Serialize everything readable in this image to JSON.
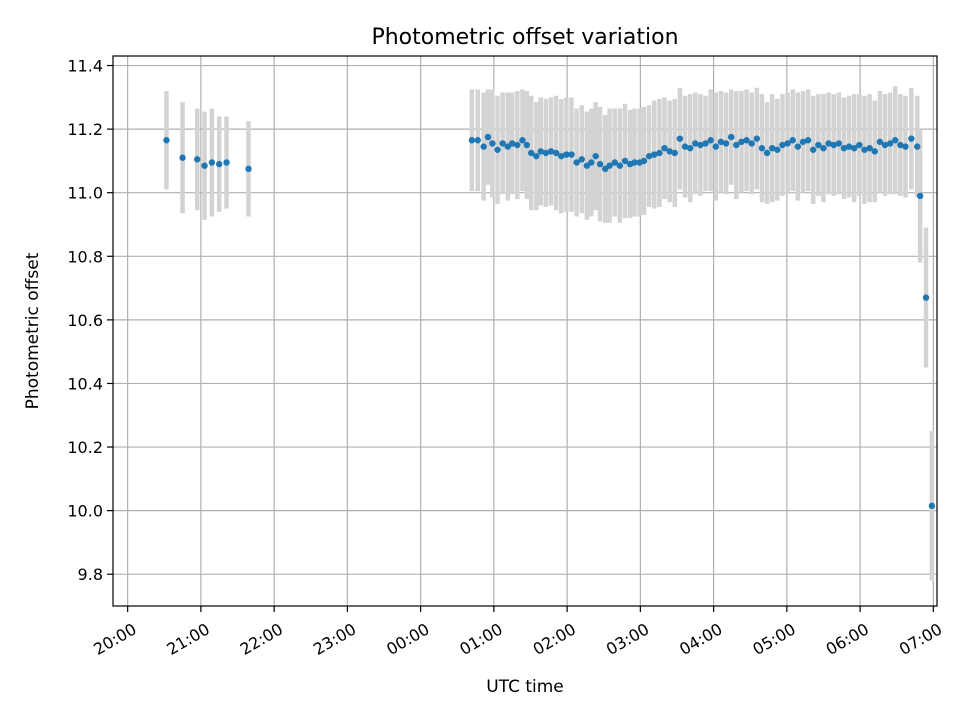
{
  "chart_data": {
    "type": "scatter",
    "title": "Photometric offset variation",
    "xlabel": "UTC time",
    "ylabel": "Photometric offset",
    "grid": true,
    "legend": "none",
    "x_unit": "UTC time, hours after 20:00",
    "xlim": [
      -0.2,
      11.05
    ],
    "ylim": [
      9.7,
      11.43
    ],
    "x_ticks": [
      {
        "value": 0,
        "label": "20:00"
      },
      {
        "value": 1,
        "label": "21:00"
      },
      {
        "value": 2,
        "label": "22:00"
      },
      {
        "value": 3,
        "label": "23:00"
      },
      {
        "value": 4,
        "label": "00:00"
      },
      {
        "value": 5,
        "label": "01:00"
      },
      {
        "value": 6,
        "label": "02:00"
      },
      {
        "value": 7,
        "label": "03:00"
      },
      {
        "value": 8,
        "label": "04:00"
      },
      {
        "value": 9,
        "label": "05:00"
      },
      {
        "value": 10,
        "label": "06:00"
      },
      {
        "value": 11,
        "label": "07:00"
      }
    ],
    "y_ticks": [
      {
        "value": 9.8,
        "label": "9.8"
      },
      {
        "value": 10.0,
        "label": "10.0"
      },
      {
        "value": 10.2,
        "label": "10.2"
      },
      {
        "value": 10.4,
        "label": "10.4"
      },
      {
        "value": 10.6,
        "label": "10.6"
      },
      {
        "value": 10.8,
        "label": "10.8"
      },
      {
        "value": 11.0,
        "label": "11.0"
      },
      {
        "value": 11.2,
        "label": "11.2"
      },
      {
        "value": 11.4,
        "label": "11.4"
      }
    ],
    "colors": {
      "point": "#1f77b4",
      "errorbar": "#d3d3d3",
      "grid": "#b0b0b0"
    },
    "series": [
      {
        "x": [
          0.53,
          0.75,
          0.95,
          1.05,
          1.15,
          1.25,
          1.35,
          1.65
        ],
        "y": [
          11.165,
          11.11,
          11.105,
          11.085,
          11.095,
          11.09,
          11.095,
          11.075
        ],
        "yerr": [
          0.155,
          0.175,
          0.16,
          0.17,
          0.17,
          0.15,
          0.145,
          0.15
        ]
      },
      {
        "x": [
          4.7,
          4.78,
          4.86,
          4.92,
          4.98,
          5.05,
          5.12,
          5.19,
          5.25,
          5.32,
          5.39,
          5.45,
          5.51,
          5.58,
          5.64,
          5.71,
          5.78,
          5.85,
          5.92,
          5.99,
          6.06,
          6.13,
          6.2,
          6.27,
          6.33,
          6.39,
          6.45,
          6.52,
          6.58,
          6.65,
          6.72,
          6.79,
          6.86,
          6.92,
          6.99,
          7.05,
          7.12,
          7.19,
          7.26,
          7.33,
          7.4,
          7.47,
          7.54,
          7.61,
          7.68,
          7.75,
          7.82,
          7.89,
          7.96,
          8.03,
          8.1,
          8.17,
          8.24,
          8.31,
          8.38,
          8.45,
          8.52,
          8.59,
          8.66,
          8.73,
          8.8,
          8.87,
          8.94,
          9.01,
          9.08,
          9.15,
          9.22,
          9.29,
          9.36,
          9.43,
          9.5,
          9.57,
          9.64,
          9.71,
          9.78,
          9.85,
          9.92,
          9.99,
          10.06,
          10.13,
          10.2,
          10.27,
          10.34,
          10.41,
          10.48,
          10.55,
          10.62,
          10.7,
          10.78,
          10.82,
          10.9
        ],
        "y": [
          11.165,
          11.165,
          11.145,
          11.175,
          11.155,
          11.135,
          11.155,
          11.145,
          11.155,
          11.15,
          11.165,
          11.15,
          11.125,
          11.115,
          11.13,
          11.125,
          11.13,
          11.125,
          11.115,
          11.12,
          11.12,
          11.095,
          11.105,
          11.085,
          11.095,
          11.115,
          11.09,
          11.075,
          11.085,
          11.095,
          11.085,
          11.1,
          11.09,
          11.095,
          11.095,
          11.1,
          11.115,
          11.12,
          11.125,
          11.14,
          11.13,
          11.125,
          11.17,
          11.145,
          11.14,
          11.155,
          11.15,
          11.155,
          11.165,
          11.145,
          11.16,
          11.155,
          11.175,
          11.15,
          11.16,
          11.165,
          11.155,
          11.17,
          11.14,
          11.125,
          11.14,
          11.135,
          11.15,
          11.155,
          11.165,
          11.145,
          11.16,
          11.165,
          11.135,
          11.15,
          11.14,
          11.155,
          11.15,
          11.155,
          11.14,
          11.145,
          11.14,
          11.15,
          11.135,
          11.14,
          11.13,
          11.16,
          11.15,
          11.155,
          11.165,
          11.15,
          11.145,
          11.17,
          11.145,
          10.99,
          10.67
        ],
        "yerr": [
          0.16,
          0.16,
          0.17,
          0.15,
          0.17,
          0.17,
          0.16,
          0.17,
          0.16,
          0.17,
          0.16,
          0.17,
          0.18,
          0.17,
          0.17,
          0.17,
          0.17,
          0.18,
          0.18,
          0.18,
          0.18,
          0.17,
          0.17,
          0.17,
          0.17,
          0.17,
          0.18,
          0.17,
          0.18,
          0.17,
          0.18,
          0.18,
          0.17,
          0.17,
          0.17,
          0.17,
          0.16,
          0.17,
          0.17,
          0.16,
          0.16,
          0.17,
          0.16,
          0.16,
          0.17,
          0.16,
          0.16,
          0.15,
          0.16,
          0.17,
          0.16,
          0.16,
          0.15,
          0.17,
          0.16,
          0.16,
          0.16,
          0.16,
          0.17,
          0.16,
          0.17,
          0.16,
          0.16,
          0.16,
          0.16,
          0.17,
          0.16,
          0.16,
          0.17,
          0.16,
          0.17,
          0.16,
          0.16,
          0.16,
          0.16,
          0.16,
          0.17,
          0.16,
          0.17,
          0.17,
          0.16,
          0.16,
          0.16,
          0.16,
          0.17,
          0.16,
          0.16,
          0.16,
          0.16,
          0.21,
          0.22
        ]
      },
      {
        "x": [
          10.98
        ],
        "y": [
          10.015
        ],
        "yerr": [
          0.235
        ]
      }
    ]
  }
}
